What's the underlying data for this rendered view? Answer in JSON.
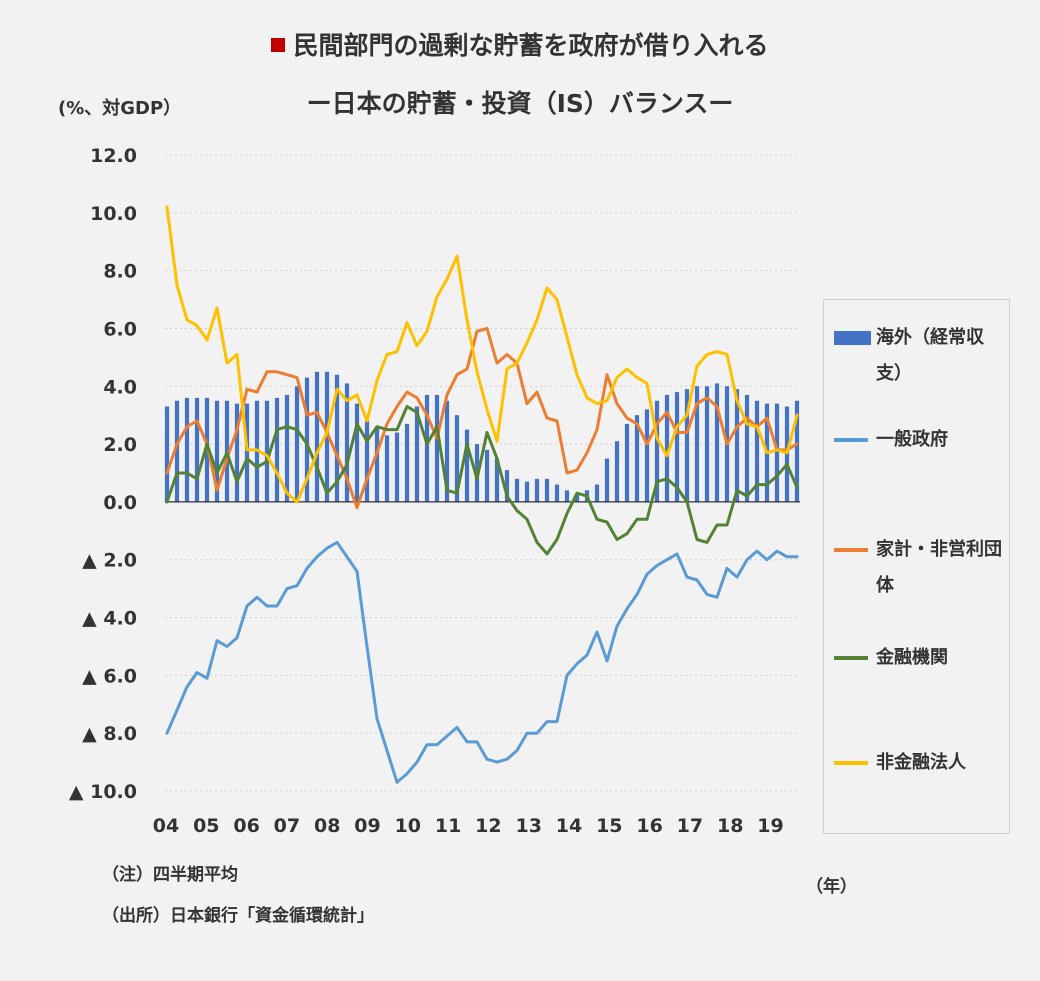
{
  "title_line1": "民間部門の過剰な貯蓄を政府が借り入れる",
  "title_line2": "ー日本の貯蓄・投資（IS）バランスー",
  "unit_label": "(%、対GDP）",
  "x_unit_label": "（年）",
  "notes": [
    "（注）四半期平均",
    "（出所）日本銀行「資金循環統計」"
  ],
  "chart_data": {
    "type": "bar+line",
    "title": "民間部門の過剰な貯蓄を政府が借り入れる ー日本の貯蓄・投資（IS）バランスー",
    "ylabel": "(%、対GDP）",
    "xlabel": "（年）",
    "ylim": [
      -10,
      12
    ],
    "y_ticks": [
      12,
      10,
      8,
      6,
      4,
      2,
      0,
      -2,
      -4,
      -6,
      -8,
      -10
    ],
    "y_tick_labels": [
      "12.0",
      "10.0",
      "8.0",
      "6.0",
      "4.0",
      "2.0",
      "0.0",
      "▲ 2.0",
      "▲ 4.0",
      "▲ 6.0",
      "▲ 8.0",
      "▲ 10.0"
    ],
    "x_tick_labels": [
      "04",
      "05",
      "06",
      "07",
      "08",
      "09",
      "10",
      "11",
      "12",
      "13",
      "14",
      "15",
      "16",
      "17",
      "18",
      "19"
    ],
    "x_range": [
      2004.0,
      2019.75
    ],
    "grid": "horizontal dotted",
    "legend": "right",
    "bars": {
      "name": "海外（経常収支）",
      "color": "#4472c4",
      "x": [
        2004.0,
        2004.25,
        2004.5,
        2004.75,
        2005.0,
        2005.25,
        2005.5,
        2005.75,
        2006.0,
        2006.25,
        2006.5,
        2006.75,
        2007.0,
        2007.25,
        2007.5,
        2007.75,
        2008.0,
        2008.25,
        2008.5,
        2008.75,
        2009.0,
        2009.25,
        2009.5,
        2009.75,
        2010.0,
        2010.25,
        2010.5,
        2010.75,
        2011.0,
        2011.25,
        2011.5,
        2011.75,
        2012.0,
        2012.25,
        2012.5,
        2012.75,
        2013.0,
        2013.25,
        2013.5,
        2013.75,
        2014.0,
        2014.25,
        2014.5,
        2014.75,
        2015.0,
        2015.25,
        2015.5,
        2015.75,
        2016.0,
        2016.25,
        2016.5,
        2016.75,
        2017.0,
        2017.25,
        2017.5,
        2017.75,
        2018.0,
        2018.25,
        2018.5,
        2018.75,
        2019.0,
        2019.25,
        2019.5,
        2019.75
      ],
      "values": [
        3.3,
        3.5,
        3.6,
        3.6,
        3.6,
        3.5,
        3.5,
        3.4,
        3.4,
        3.5,
        3.5,
        3.6,
        3.7,
        4.0,
        4.3,
        4.5,
        4.5,
        4.4,
        4.1,
        3.4,
        2.8,
        2.6,
        2.3,
        2.4,
        2.7,
        3.3,
        3.7,
        3.7,
        3.5,
        3.0,
        2.5,
        2.0,
        1.8,
        1.5,
        1.1,
        0.8,
        0.7,
        0.8,
        0.8,
        0.6,
        0.4,
        0.3,
        0.4,
        0.6,
        1.5,
        2.1,
        2.7,
        3.0,
        3.2,
        3.5,
        3.7,
        3.8,
        3.9,
        4.0,
        4.0,
        4.1,
        4.0,
        3.9,
        3.7,
        3.5,
        3.4,
        3.4,
        3.3,
        3.5
      ]
    },
    "series": [
      {
        "name": "一般政府",
        "color": "#5b9bd5",
        "values": [
          -8.0,
          -7.2,
          -6.4,
          -5.9,
          -6.1,
          -4.8,
          -5.0,
          -4.7,
          -3.6,
          -3.3,
          -3.6,
          -3.6,
          -3.0,
          -2.9,
          -2.3,
          -1.9,
          -1.6,
          -1.4,
          -1.9,
          -2.4,
          -5.0,
          -7.5,
          -8.6,
          -9.7,
          -9.4,
          -9.0,
          -8.4,
          -8.4,
          -8.1,
          -7.8,
          -8.3,
          -8.3,
          -8.9,
          -9.0,
          -8.9,
          -8.6,
          -8.0,
          -8.0,
          -7.6,
          -7.6,
          -6.0,
          -5.6,
          -5.3,
          -4.5,
          -5.5,
          -4.3,
          -3.7,
          -3.2,
          -2.5,
          -2.2,
          -2.0,
          -1.8,
          -2.6,
          -2.7,
          -3.2,
          -3.3,
          -2.3,
          -2.6,
          -2.0,
          -1.7,
          -2.0,
          -1.7,
          -1.9,
          -1.9
        ]
      },
      {
        "name": "家計・非営利団体",
        "color": "#ed7d31",
        "values": [
          1.0,
          2.0,
          2.6,
          2.8,
          2.0,
          0.4,
          1.5,
          2.5,
          3.9,
          3.8,
          4.5,
          4.5,
          4.4,
          4.3,
          3.0,
          3.1,
          2.4,
          1.6,
          0.8,
          -0.2,
          0.8,
          1.7,
          2.7,
          3.3,
          3.8,
          3.6,
          3.0,
          2.2,
          3.7,
          4.4,
          4.6,
          5.9,
          6.0,
          4.8,
          5.1,
          4.8,
          3.4,
          3.8,
          2.9,
          2.8,
          1.0,
          1.1,
          1.7,
          2.5,
          4.4,
          3.4,
          2.9,
          2.7,
          2.0,
          2.7,
          3.1,
          2.4,
          2.4,
          3.4,
          3.6,
          3.3,
          2.0,
          2.6,
          2.9,
          2.6,
          2.9,
          1.8,
          1.8,
          2.0
        ]
      },
      {
        "name": "金融機関",
        "color": "#548235",
        "values": [
          0.0,
          1.0,
          1.0,
          0.8,
          2.0,
          1.0,
          1.7,
          0.7,
          1.5,
          1.2,
          1.4,
          2.5,
          2.6,
          2.5,
          2.0,
          1.2,
          0.3,
          0.7,
          1.3,
          2.7,
          2.1,
          2.6,
          2.5,
          2.5,
          3.3,
          3.1,
          2.0,
          2.6,
          0.4,
          0.3,
          2.0,
          0.8,
          2.4,
          1.5,
          0.2,
          -0.3,
          -0.6,
          -1.4,
          -1.8,
          -1.3,
          -0.4,
          0.3,
          0.2,
          -0.6,
          -0.7,
          -1.3,
          -1.1,
          -0.6,
          -0.6,
          0.7,
          0.8,
          0.5,
          0.0,
          -1.3,
          -1.4,
          -0.8,
          -0.8,
          0.4,
          0.2,
          0.6,
          0.6,
          0.9,
          1.3,
          0.5
        ]
      },
      {
        "name": "非金融法人",
        "color": "#ffc000",
        "values": [
          10.2,
          7.5,
          6.3,
          6.1,
          5.6,
          6.7,
          4.8,
          5.1,
          1.8,
          1.8,
          1.6,
          1.0,
          0.3,
          0.0,
          0.8,
          1.7,
          2.4,
          3.9,
          3.5,
          3.7,
          2.8,
          4.2,
          5.1,
          5.2,
          6.2,
          5.4,
          5.9,
          7.1,
          7.7,
          8.5,
          6.3,
          4.5,
          3.2,
          2.1,
          4.6,
          4.8,
          5.5,
          6.3,
          7.4,
          7.0,
          5.7,
          4.4,
          3.6,
          3.4,
          3.5,
          4.3,
          4.6,
          4.3,
          4.1,
          2.2,
          1.6,
          2.6,
          3.0,
          4.7,
          5.1,
          5.2,
          5.1,
          3.5,
          2.7,
          2.6,
          1.7,
          1.8,
          1.7,
          3.0
        ]
      }
    ]
  },
  "legend_items": [
    {
      "label": "海外（経常収支）",
      "kind": "bar",
      "color": "#4472c4"
    },
    {
      "label": "一般政府",
      "kind": "line",
      "color": "#5b9bd5"
    },
    {
      "label": "家計・非営利団体",
      "kind": "line",
      "color": "#ed7d31"
    },
    {
      "label": "金融機関",
      "kind": "line",
      "color": "#548235"
    },
    {
      "label": "非金融法人",
      "kind": "line",
      "color": "#ffc000"
    }
  ]
}
